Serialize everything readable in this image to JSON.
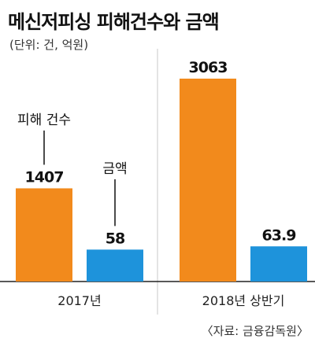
{
  "title": "메신저피싱 피해건수와 금액",
  "unit": "(단위: 건, 억원)",
  "source": "〈자료: 금융감독원〉",
  "colors": {
    "count": "#F28A1C",
    "amount": "#1E93DB",
    "divider": "#c9c9c9"
  },
  "chart_data": {
    "type": "bar",
    "categories": [
      "2017년",
      "2018년 상반기"
    ],
    "series": [
      {
        "name": "피해 건수",
        "values": [
          1407,
          3063
        ],
        "labels": [
          "1407",
          "3063"
        ]
      },
      {
        "name": "금액",
        "values": [
          58,
          63.9
        ],
        "labels": [
          "58",
          "63.9"
        ]
      }
    ]
  }
}
